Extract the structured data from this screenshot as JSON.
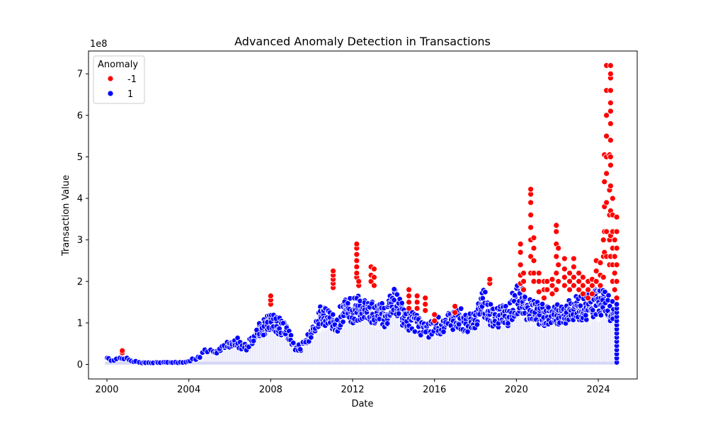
{
  "chart_data": {
    "type": "scatter",
    "title": "Advanced Anomaly Detection in Transactions",
    "xlabel": "Date",
    "ylabel": "Transaction Value",
    "y_scale_label": "1e8",
    "x_axis": "date (years)",
    "xlim": [
      1999.1,
      2025.9
    ],
    "ylim": [
      -0.35,
      7.55
    ],
    "x_ticks": [
      2000,
      2004,
      2008,
      2012,
      2016,
      2020,
      2024
    ],
    "x_tick_labels": [
      "2000",
      "2004",
      "2008",
      "2012",
      "2016",
      "2020",
      "2024"
    ],
    "y_ticks": [
      0,
      1,
      2,
      3,
      4,
      5,
      6,
      7
    ],
    "y_tick_labels": [
      "0",
      "1",
      "2",
      "3",
      "4",
      "5",
      "6",
      "7"
    ],
    "grid": false,
    "legend": {
      "title": "Anomaly",
      "placement": "top-left",
      "entries": [
        {
          "label": "-1",
          "color": "#ff0000"
        },
        {
          "label": "1",
          "color": "#0000ff"
        }
      ]
    },
    "colors": {
      "anomaly": "#ff0000",
      "normal": "#0000ff",
      "baseline_haze": "#dcdcf8"
    },
    "series": [
      {
        "name": "1",
        "description": "per-period maximum transaction value of normal points (1e8 units); points fill from 0 up to this level",
        "x": [
          2000.0,
          2000.4,
          2000.8,
          2001.2,
          2001.6,
          2002.0,
          2002.5,
          2003.0,
          2003.5,
          2004.0,
          2004.4,
          2004.8,
          2005.2,
          2005.6,
          2006.0,
          2006.4,
          2006.8,
          2007.2,
          2007.6,
          2008.0,
          2008.4,
          2008.8,
          2009.2,
          2009.6,
          2010.0,
          2010.4,
          2010.8,
          2011.2,
          2011.6,
          2012.0,
          2012.4,
          2012.8,
          2013.2,
          2013.6,
          2014.0,
          2014.4,
          2014.8,
          2015.2,
          2015.6,
          2016.0,
          2016.4,
          2016.8,
          2017.2,
          2017.6,
          2018.0,
          2018.4,
          2018.8,
          2019.2,
          2019.6,
          2020.0,
          2020.4,
          2020.8,
          2021.2,
          2021.6,
          2022.0,
          2022.4,
          2022.8,
          2023.2,
          2023.6,
          2024.0,
          2024.4,
          2024.8
        ],
        "y": [
          0.18,
          0.12,
          0.2,
          0.1,
          0.06,
          0.05,
          0.06,
          0.06,
          0.06,
          0.08,
          0.2,
          0.38,
          0.35,
          0.45,
          0.65,
          0.65,
          0.5,
          0.9,
          1.1,
          1.3,
          1.15,
          0.95,
          0.5,
          0.55,
          0.85,
          1.4,
          1.35,
          1.2,
          1.6,
          1.6,
          1.7,
          1.55,
          1.5,
          1.45,
          1.85,
          1.5,
          1.3,
          1.2,
          1.0,
          1.1,
          1.2,
          1.25,
          1.4,
          1.15,
          1.35,
          1.9,
          1.4,
          1.45,
          1.5,
          1.95,
          1.8,
          1.6,
          1.5,
          1.45,
          1.5,
          1.55,
          1.65,
          1.7,
          1.7,
          1.85,
          1.8,
          1.5
        ]
      },
      {
        "name": "-1",
        "description": "anomalous points (1e8 units)",
        "x": [
          2000.75,
          2000.75,
          2008.0,
          2008.0,
          2008.0,
          2011.05,
          2011.05,
          2011.05,
          2011.05,
          2011.05,
          2012.2,
          2012.2,
          2012.2,
          2012.2,
          2012.2,
          2012.2,
          2012.2,
          2012.3,
          2012.3,
          2012.9,
          2012.9,
          2012.9,
          2013.05,
          2013.05,
          2013.05,
          2014.75,
          2014.75,
          2014.75,
          2014.75,
          2015.15,
          2015.15,
          2015.15,
          2015.55,
          2015.55,
          2015.55,
          2016.0,
          2016.0,
          2017.0,
          2017.0,
          2018.7,
          2018.7,
          2020.2,
          2020.2,
          2020.2,
          2020.2,
          2020.2,
          2020.35,
          2020.35,
          2020.35,
          2020.7,
          2020.7,
          2020.7,
          2020.7,
          2020.7,
          2020.7,
          2020.7,
          2020.7,
          2020.85,
          2020.85,
          2020.85,
          2020.85,
          2020.85,
          2021.1,
          2021.1,
          2021.1,
          2021.35,
          2021.35,
          2021.35,
          2021.5,
          2021.5,
          2021.75,
          2021.75,
          2021.75,
          2021.95,
          2021.95,
          2021.95,
          2021.95,
          2021.95,
          2021.95,
          2022.05,
          2022.05,
          2022.05,
          2022.35,
          2022.35,
          2022.35,
          2022.35,
          2022.6,
          2022.6,
          2022.6,
          2022.8,
          2022.8,
          2022.8,
          2022.8,
          2023.05,
          2023.05,
          2023.05,
          2023.25,
          2023.25,
          2023.25,
          2023.5,
          2023.5,
          2023.5,
          2023.7,
          2023.7,
          2023.7,
          2023.9,
          2023.9,
          2023.9,
          2024.1,
          2024.1,
          2024.1,
          2024.25,
          2024.25,
          2024.25,
          2024.3,
          2024.3,
          2024.3,
          2024.3,
          2024.3,
          2024.4,
          2024.4,
          2024.4,
          2024.4,
          2024.4,
          2024.4,
          2024.4,
          2024.4,
          2024.4,
          2024.55,
          2024.55,
          2024.55,
          2024.55,
          2024.55,
          2024.6,
          2024.6,
          2024.6,
          2024.6,
          2024.6,
          2024.6,
          2024.6,
          2024.6,
          2024.6,
          2024.6,
          2024.6,
          2024.6,
          2024.6,
          2024.6,
          2024.7,
          2024.7,
          2024.7,
          2024.7,
          2024.7,
          2024.7,
          2024.8,
          2024.8,
          2024.8,
          2024.8,
          2024.9,
          2024.9,
          2024.9,
          2024.9,
          2024.9,
          2024.9
        ],
        "y": [
          0.28,
          0.33,
          1.45,
          1.55,
          1.65,
          1.85,
          1.95,
          2.05,
          2.15,
          2.25,
          2.1,
          2.2,
          2.35,
          2.5,
          2.65,
          2.8,
          2.9,
          1.9,
          2.0,
          2.0,
          2.15,
          2.35,
          1.9,
          2.1,
          2.3,
          1.35,
          1.5,
          1.65,
          1.8,
          1.35,
          1.5,
          1.65,
          1.3,
          1.45,
          1.6,
          1.05,
          1.2,
          1.25,
          1.4,
          1.95,
          2.05,
          1.95,
          2.15,
          2.4,
          2.7,
          2.9,
          1.8,
          2.0,
          2.2,
          2.2,
          2.6,
          3.0,
          3.3,
          3.6,
          3.9,
          4.1,
          4.22,
          2.0,
          2.2,
          2.5,
          2.8,
          3.05,
          1.75,
          2.0,
          2.2,
          1.6,
          1.8,
          2.0,
          1.8,
          2.0,
          1.7,
          1.9,
          2.05,
          1.8,
          2.2,
          2.6,
          2.9,
          3.2,
          3.35,
          2.0,
          2.4,
          2.8,
          1.9,
          2.1,
          2.3,
          2.55,
          1.8,
          2.0,
          2.2,
          1.9,
          2.1,
          2.35,
          2.55,
          1.8,
          2.0,
          2.2,
          1.7,
          1.9,
          2.1,
          1.6,
          1.8,
          2.0,
          1.7,
          1.9,
          2.05,
          2.0,
          2.25,
          2.5,
          1.9,
          2.15,
          2.45,
          2.1,
          2.6,
          3.0,
          2.7,
          3.2,
          3.8,
          4.4,
          5.05,
          2.6,
          3.2,
          3.9,
          4.6,
          5.0,
          5.5,
          6.0,
          6.6,
          7.2,
          2.4,
          3.0,
          3.6,
          4.2,
          5.05,
          2.6,
          3.1,
          3.7,
          4.3,
          4.8,
          5.0,
          5.4,
          5.8,
          6.1,
          6.3,
          6.6,
          6.9,
          7.0,
          7.2,
          2.0,
          2.4,
          2.8,
          3.2,
          3.6,
          4.0,
          1.8,
          2.2,
          2.6,
          3.0,
          1.6,
          2.0,
          2.4,
          2.8,
          3.2,
          3.55
        ]
      }
    ]
  }
}
